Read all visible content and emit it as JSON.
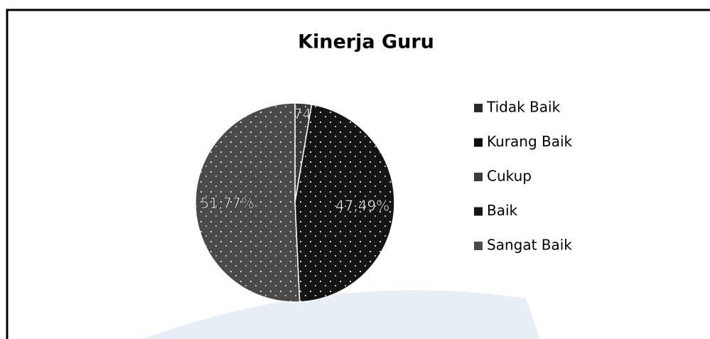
{
  "chart_data": {
    "type": "pie",
    "title": "Kinerja Guru",
    "categories": [
      "Tidak Baik",
      "Kurang Baik",
      "Cukup",
      "Baik",
      "Sangat Baik"
    ],
    "values": [
      0,
      0,
      2.74,
      47.49,
      51.77
    ],
    "value_labels": [
      null,
      null,
      "2,74%",
      "47,49%",
      "51,77%"
    ],
    "colors": [
      "#2a2a2a",
      "#0d0d0d",
      "#3a3a3a",
      "#151515",
      "#4a4a4a"
    ]
  }
}
